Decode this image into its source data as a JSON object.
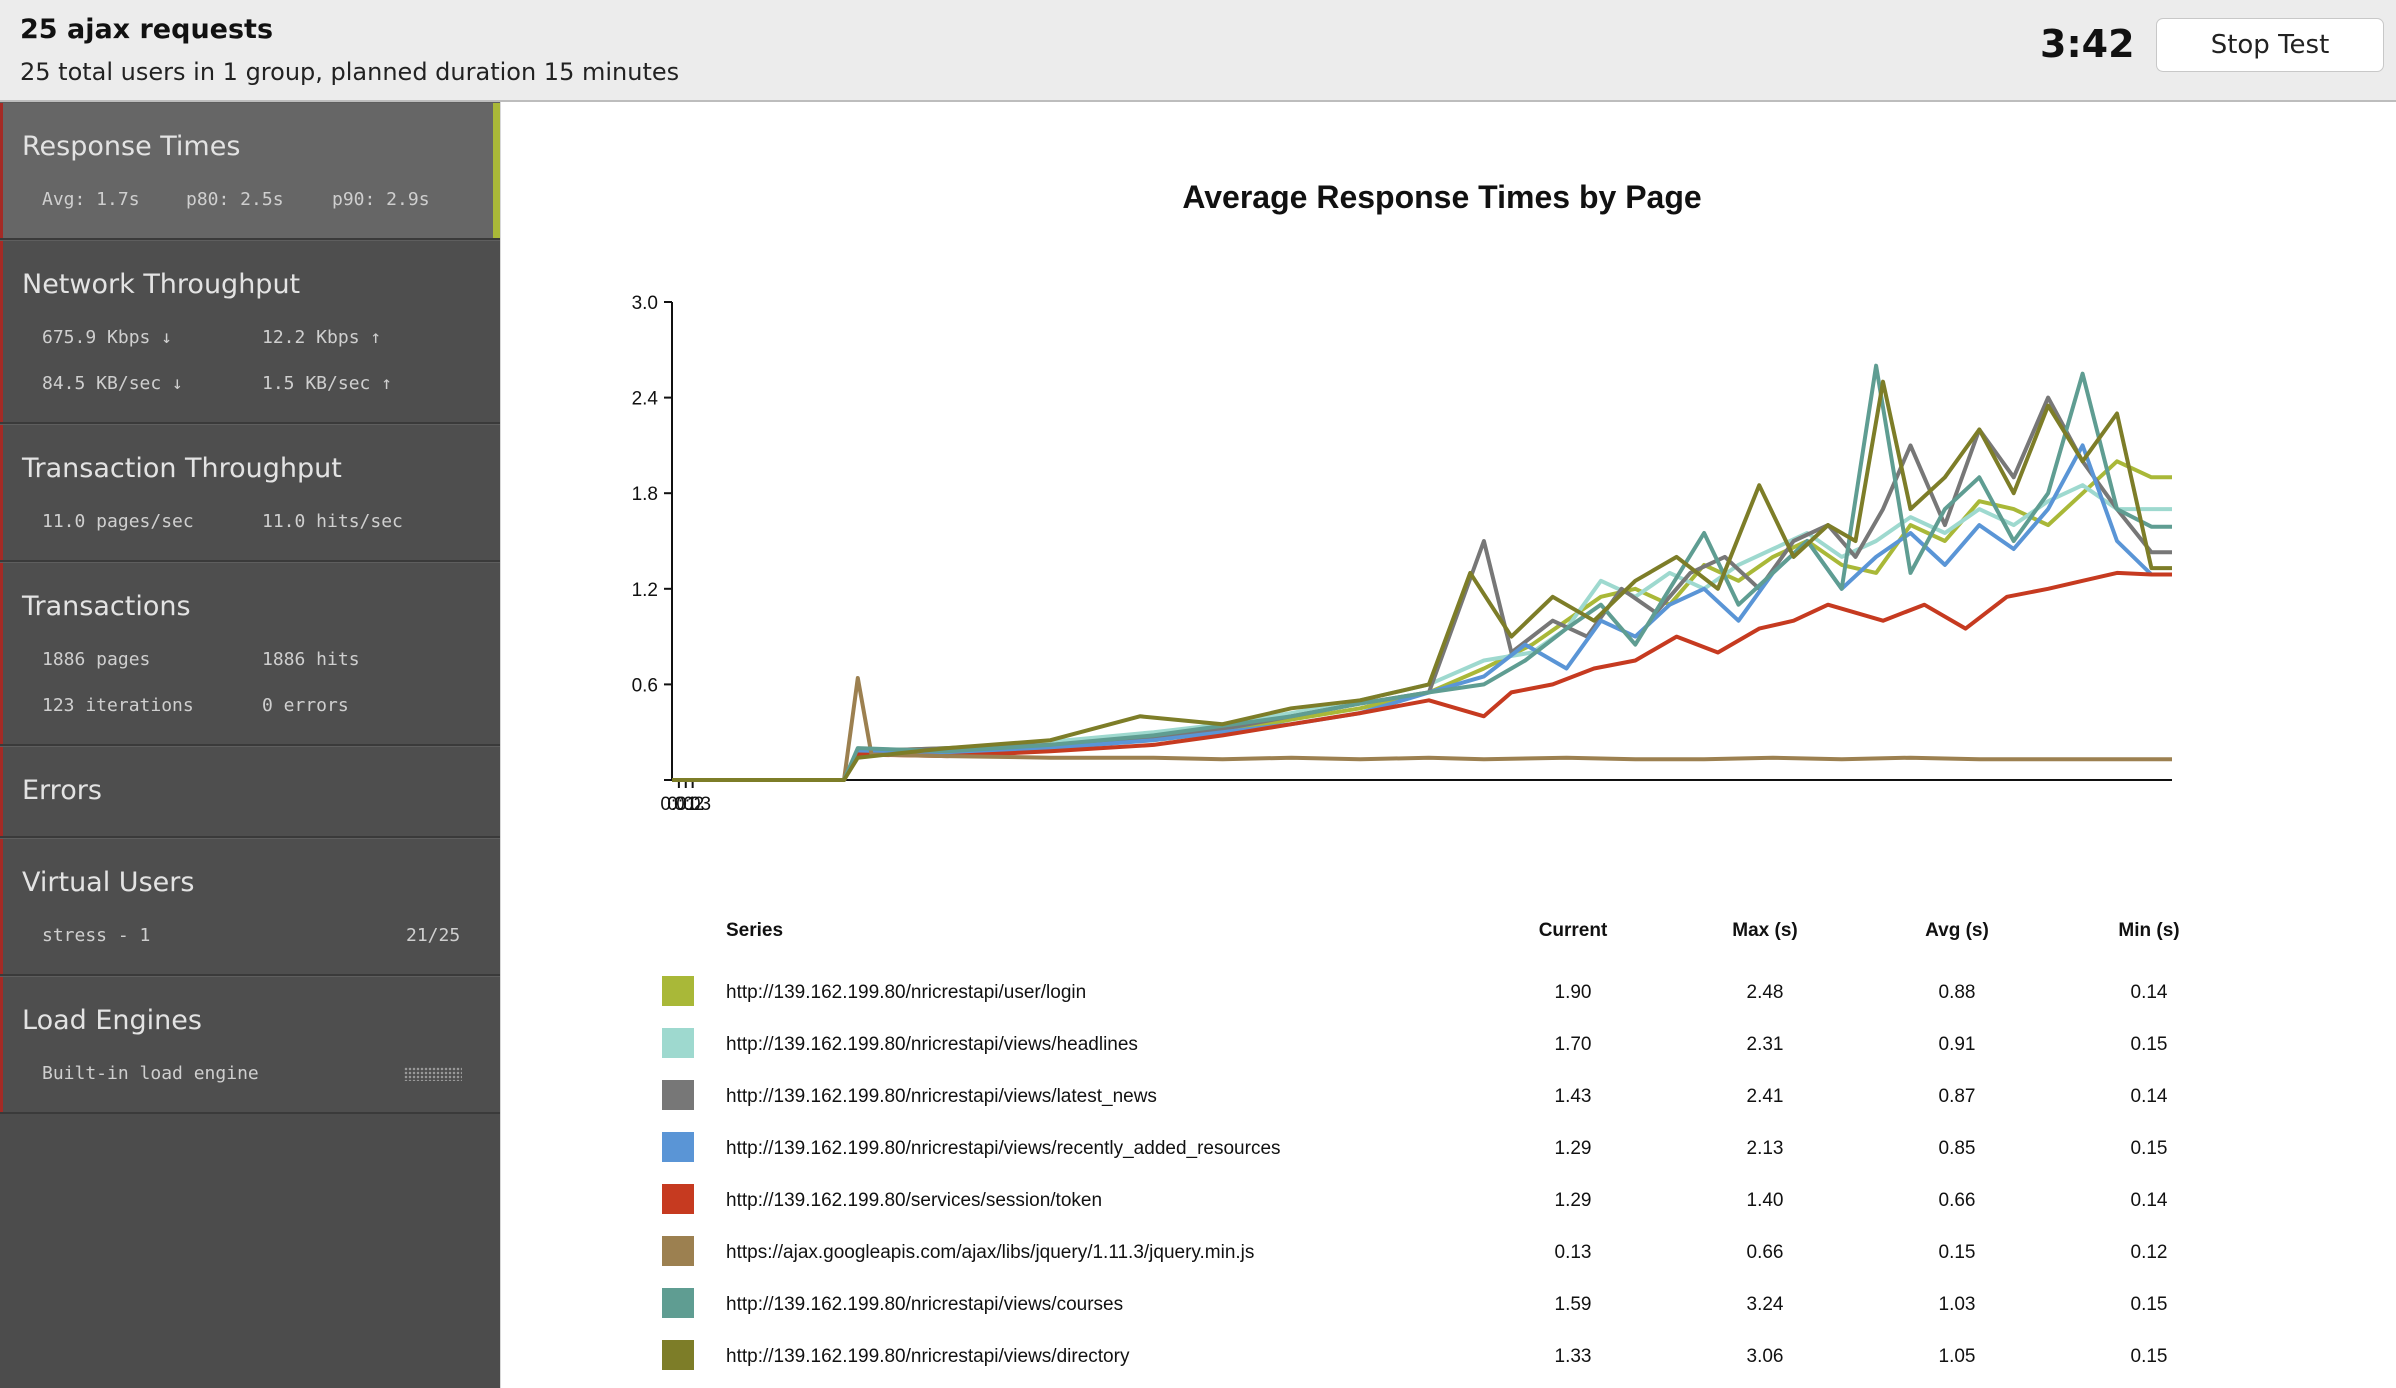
{
  "header": {
    "title": "25 ajax requests",
    "subtitle": "25 total users in 1 group, planned duration 15 minutes",
    "timer": "3:42",
    "stop_label": "Stop Test"
  },
  "sidebar": {
    "response_times": {
      "title": "Response Times",
      "avg": "Avg: 1.7s",
      "p80": "p80: 2.5s",
      "p90": "p90: 2.9s"
    },
    "network": {
      "title": "Network Throughput",
      "down_kbps": "675.9 Kbps ↓",
      "up_kbps": "12.2 Kbps ↑",
      "down_kb": "84.5 KB/sec ↓",
      "up_kb": "1.5 KB/sec ↑"
    },
    "transaction_throughput": {
      "title": "Transaction Throughput",
      "pages": "11.0 pages/sec",
      "hits": "11.0 hits/sec"
    },
    "transactions": {
      "title": "Transactions",
      "pages": "1886 pages",
      "hits": "1886 hits",
      "iterations": "123 iterations",
      "errors": "0 errors"
    },
    "errors": {
      "title": "Errors"
    },
    "virtual_users": {
      "title": "Virtual Users",
      "group": "stress - 1",
      "count": "21/25"
    },
    "load_engines": {
      "title": "Load Engines",
      "engine": "Built-in load engine"
    }
  },
  "chart_data": {
    "type": "line",
    "title": "Average Response Times by Page",
    "xlabel": "",
    "ylabel": "",
    "x_ticks": [
      "0:01",
      "0:02",
      "0:03"
    ],
    "y_ticks": [
      "3.0",
      "2.4",
      "1.8",
      "1.2",
      "0.6"
    ],
    "xlim": [
      0,
      218
    ],
    "ylim": [
      0,
      3.0
    ],
    "x_unit": "seconds",
    "grid": false,
    "legend_placement": "bottom",
    "series": [
      {
        "name": "http://139.162.199.80/nricrestapi/user/login",
        "color": "#a9b838",
        "points": [
          [
            0,
            0
          ],
          [
            25,
            0
          ],
          [
            27,
            0.18
          ],
          [
            40,
            0.2
          ],
          [
            55,
            0.22
          ],
          [
            70,
            0.25
          ],
          [
            80,
            0.3
          ],
          [
            90,
            0.38
          ],
          [
            100,
            0.45
          ],
          [
            110,
            0.55
          ],
          [
            118,
            0.7
          ],
          [
            125,
            0.85
          ],
          [
            130,
            1.0
          ],
          [
            135,
            1.15
          ],
          [
            140,
            1.2
          ],
          [
            145,
            1.1
          ],
          [
            150,
            1.35
          ],
          [
            155,
            1.25
          ],
          [
            160,
            1.4
          ],
          [
            165,
            1.5
          ],
          [
            170,
            1.35
          ],
          [
            175,
            1.3
          ],
          [
            180,
            1.6
          ],
          [
            185,
            1.5
          ],
          [
            190,
            1.75
          ],
          [
            195,
            1.7
          ],
          [
            200,
            1.6
          ],
          [
            205,
            1.8
          ],
          [
            210,
            2.0
          ],
          [
            215,
            1.9
          ],
          [
            218,
            1.9
          ]
        ]
      },
      {
        "name": "http://139.162.199.80/nricrestapi/views/headlines",
        "color": "#9ed9cf",
        "points": [
          [
            0,
            0
          ],
          [
            25,
            0
          ],
          [
            27,
            0.16
          ],
          [
            40,
            0.2
          ],
          [
            55,
            0.24
          ],
          [
            70,
            0.3
          ],
          [
            80,
            0.35
          ],
          [
            90,
            0.42
          ],
          [
            100,
            0.5
          ],
          [
            110,
            0.6
          ],
          [
            118,
            0.75
          ],
          [
            125,
            0.8
          ],
          [
            130,
            0.95
          ],
          [
            135,
            1.25
          ],
          [
            140,
            1.15
          ],
          [
            145,
            1.3
          ],
          [
            150,
            1.2
          ],
          [
            155,
            1.35
          ],
          [
            160,
            1.45
          ],
          [
            165,
            1.55
          ],
          [
            170,
            1.4
          ],
          [
            175,
            1.5
          ],
          [
            180,
            1.65
          ],
          [
            185,
            1.55
          ],
          [
            190,
            1.7
          ],
          [
            195,
            1.6
          ],
          [
            200,
            1.75
          ],
          [
            205,
            1.85
          ],
          [
            210,
            1.7
          ],
          [
            215,
            1.7
          ],
          [
            218,
            1.7
          ]
        ]
      },
      {
        "name": "http://139.162.199.80/nricrestapi/views/latest_news",
        "color": "#777777",
        "points": [
          [
            0,
            0
          ],
          [
            25,
            0
          ],
          [
            27,
            0.18
          ],
          [
            40,
            0.2
          ],
          [
            55,
            0.22
          ],
          [
            70,
            0.27
          ],
          [
            80,
            0.32
          ],
          [
            90,
            0.4
          ],
          [
            100,
            0.48
          ],
          [
            110,
            0.55
          ],
          [
            118,
            1.5
          ],
          [
            122,
            0.8
          ],
          [
            128,
            1.0
          ],
          [
            133,
            0.9
          ],
          [
            138,
            1.2
          ],
          [
            143,
            1.05
          ],
          [
            148,
            1.3
          ],
          [
            153,
            1.4
          ],
          [
            158,
            1.2
          ],
          [
            163,
            1.5
          ],
          [
            168,
            1.6
          ],
          [
            172,
            1.4
          ],
          [
            176,
            1.7
          ],
          [
            180,
            2.1
          ],
          [
            185,
            1.6
          ],
          [
            190,
            2.2
          ],
          [
            195,
            1.9
          ],
          [
            200,
            2.4
          ],
          [
            205,
            2.0
          ],
          [
            210,
            1.7
          ],
          [
            215,
            1.43
          ],
          [
            218,
            1.43
          ]
        ]
      },
      {
        "name": "http://139.162.199.80/nricrestapi/views/recently_added_resources",
        "color": "#5a95d6",
        "points": [
          [
            0,
            0
          ],
          [
            25,
            0
          ],
          [
            27,
            0.18
          ],
          [
            40,
            0.16
          ],
          [
            55,
            0.2
          ],
          [
            70,
            0.25
          ],
          [
            80,
            0.3
          ],
          [
            90,
            0.35
          ],
          [
            100,
            0.42
          ],
          [
            110,
            0.55
          ],
          [
            118,
            0.65
          ],
          [
            124,
            0.85
          ],
          [
            130,
            0.7
          ],
          [
            135,
            1.0
          ],
          [
            140,
            0.9
          ],
          [
            145,
            1.1
          ],
          [
            150,
            1.2
          ],
          [
            155,
            1.0
          ],
          [
            160,
            1.3
          ],
          [
            165,
            1.5
          ],
          [
            170,
            1.2
          ],
          [
            175,
            1.4
          ],
          [
            180,
            1.55
          ],
          [
            185,
            1.35
          ],
          [
            190,
            1.6
          ],
          [
            195,
            1.45
          ],
          [
            200,
            1.7
          ],
          [
            205,
            2.1
          ],
          [
            210,
            1.5
          ],
          [
            215,
            1.29
          ],
          [
            218,
            1.29
          ]
        ]
      },
      {
        "name": "http://139.162.199.80/services/session/token",
        "color": "#c63a20",
        "points": [
          [
            0,
            0
          ],
          [
            25,
            0
          ],
          [
            27,
            0.16
          ],
          [
            40,
            0.15
          ],
          [
            55,
            0.18
          ],
          [
            70,
            0.22
          ],
          [
            80,
            0.28
          ],
          [
            90,
            0.35
          ],
          [
            100,
            0.42
          ],
          [
            110,
            0.5
          ],
          [
            118,
            0.4
          ],
          [
            122,
            0.55
          ],
          [
            128,
            0.6
          ],
          [
            134,
            0.7
          ],
          [
            140,
            0.75
          ],
          [
            146,
            0.9
          ],
          [
            152,
            0.8
          ],
          [
            158,
            0.95
          ],
          [
            163,
            1.0
          ],
          [
            168,
            1.1
          ],
          [
            172,
            1.05
          ],
          [
            176,
            1.0
          ],
          [
            182,
            1.1
          ],
          [
            188,
            0.95
          ],
          [
            194,
            1.15
          ],
          [
            200,
            1.2
          ],
          [
            205,
            1.25
          ],
          [
            210,
            1.3
          ],
          [
            215,
            1.29
          ],
          [
            218,
            1.29
          ]
        ]
      },
      {
        "name": "https://ajax.googleapis.com/ajax/libs/jquery/1.11.3/jquery.min.js",
        "color": "#9c8050",
        "points": [
          [
            0,
            0
          ],
          [
            25,
            0
          ],
          [
            27,
            0.64
          ],
          [
            29,
            0.16
          ],
          [
            40,
            0.15
          ],
          [
            55,
            0.14
          ],
          [
            70,
            0.14
          ],
          [
            80,
            0.13
          ],
          [
            90,
            0.14
          ],
          [
            100,
            0.13
          ],
          [
            110,
            0.14
          ],
          [
            118,
            0.13
          ],
          [
            130,
            0.14
          ],
          [
            140,
            0.13
          ],
          [
            150,
            0.13
          ],
          [
            160,
            0.14
          ],
          [
            170,
            0.13
          ],
          [
            180,
            0.14
          ],
          [
            190,
            0.13
          ],
          [
            200,
            0.13
          ],
          [
            210,
            0.13
          ],
          [
            218,
            0.13
          ]
        ]
      },
      {
        "name": "http://139.162.199.80/nricrestapi/views/courses",
        "color": "#5f9d92",
        "points": [
          [
            0,
            0
          ],
          [
            25,
            0
          ],
          [
            27,
            0.2
          ],
          [
            40,
            0.18
          ],
          [
            55,
            0.22
          ],
          [
            70,
            0.28
          ],
          [
            80,
            0.34
          ],
          [
            90,
            0.4
          ],
          [
            100,
            0.48
          ],
          [
            110,
            0.55
          ],
          [
            118,
            0.6
          ],
          [
            124,
            0.75
          ],
          [
            130,
            0.95
          ],
          [
            135,
            1.1
          ],
          [
            140,
            0.85
          ],
          [
            145,
            1.2
          ],
          [
            150,
            1.55
          ],
          [
            155,
            1.1
          ],
          [
            160,
            1.3
          ],
          [
            165,
            1.5
          ],
          [
            170,
            1.2
          ],
          [
            175,
            2.6
          ],
          [
            180,
            1.3
          ],
          [
            185,
            1.7
          ],
          [
            190,
            1.9
          ],
          [
            195,
            1.5
          ],
          [
            200,
            1.8
          ],
          [
            205,
            2.55
          ],
          [
            210,
            1.7
          ],
          [
            215,
            1.59
          ],
          [
            218,
            1.59
          ]
        ]
      },
      {
        "name": "http://139.162.199.80/nricrestapi/views/directory",
        "color": "#7d7d28",
        "points": [
          [
            0,
            0
          ],
          [
            25,
            0
          ],
          [
            27,
            0.14
          ],
          [
            40,
            0.2
          ],
          [
            55,
            0.25
          ],
          [
            68,
            0.4
          ],
          [
            80,
            0.35
          ],
          [
            90,
            0.45
          ],
          [
            100,
            0.5
          ],
          [
            110,
            0.6
          ],
          [
            116,
            1.3
          ],
          [
            122,
            0.9
          ],
          [
            128,
            1.15
          ],
          [
            134,
            1.0
          ],
          [
            140,
            1.25
          ],
          [
            146,
            1.4
          ],
          [
            152,
            1.2
          ],
          [
            158,
            1.85
          ],
          [
            163,
            1.4
          ],
          [
            168,
            1.6
          ],
          [
            172,
            1.5
          ],
          [
            176,
            2.5
          ],
          [
            180,
            1.7
          ],
          [
            185,
            1.9
          ],
          [
            190,
            2.2
          ],
          [
            195,
            1.8
          ],
          [
            200,
            2.35
          ],
          [
            205,
            2.0
          ],
          [
            210,
            2.3
          ],
          [
            215,
            1.33
          ],
          [
            218,
            1.33
          ]
        ]
      }
    ]
  },
  "legend": {
    "headers": {
      "series": "Series",
      "current": "Current",
      "max": "Max (s)",
      "avg": "Avg (s)",
      "min": "Min (s)"
    },
    "rows": [
      {
        "url": "http://139.162.199.80/nricrestapi/user/login",
        "color": "#a9b838",
        "current": "1.90",
        "max": "2.48",
        "avg": "0.88",
        "min": "0.14"
      },
      {
        "url": "http://139.162.199.80/nricrestapi/views/headlines",
        "color": "#9ed9cf",
        "current": "1.70",
        "max": "2.31",
        "avg": "0.91",
        "min": "0.15"
      },
      {
        "url": "http://139.162.199.80/nricrestapi/views/latest_news",
        "color": "#777777",
        "current": "1.43",
        "max": "2.41",
        "avg": "0.87",
        "min": "0.14"
      },
      {
        "url": "http://139.162.199.80/nricrestapi/views/recently_added_resources",
        "color": "#5a95d6",
        "current": "1.29",
        "max": "2.13",
        "avg": "0.85",
        "min": "0.15"
      },
      {
        "url": "http://139.162.199.80/services/session/token",
        "color": "#c63a20",
        "current": "1.29",
        "max": "1.40",
        "avg": "0.66",
        "min": "0.14"
      },
      {
        "url": "https://ajax.googleapis.com/ajax/libs/jquery/1.11.3/jquery.min.js",
        "color": "#9c8050",
        "current": "0.13",
        "max": "0.66",
        "avg": "0.15",
        "min": "0.12"
      },
      {
        "url": "http://139.162.199.80/nricrestapi/views/courses",
        "color": "#5f9d92",
        "current": "1.59",
        "max": "3.24",
        "avg": "1.03",
        "min": "0.15"
      },
      {
        "url": "http://139.162.199.80/nricrestapi/views/directory",
        "color": "#7d7d28",
        "current": "1.33",
        "max": "3.06",
        "avg": "1.05",
        "min": "0.15"
      }
    ]
  }
}
